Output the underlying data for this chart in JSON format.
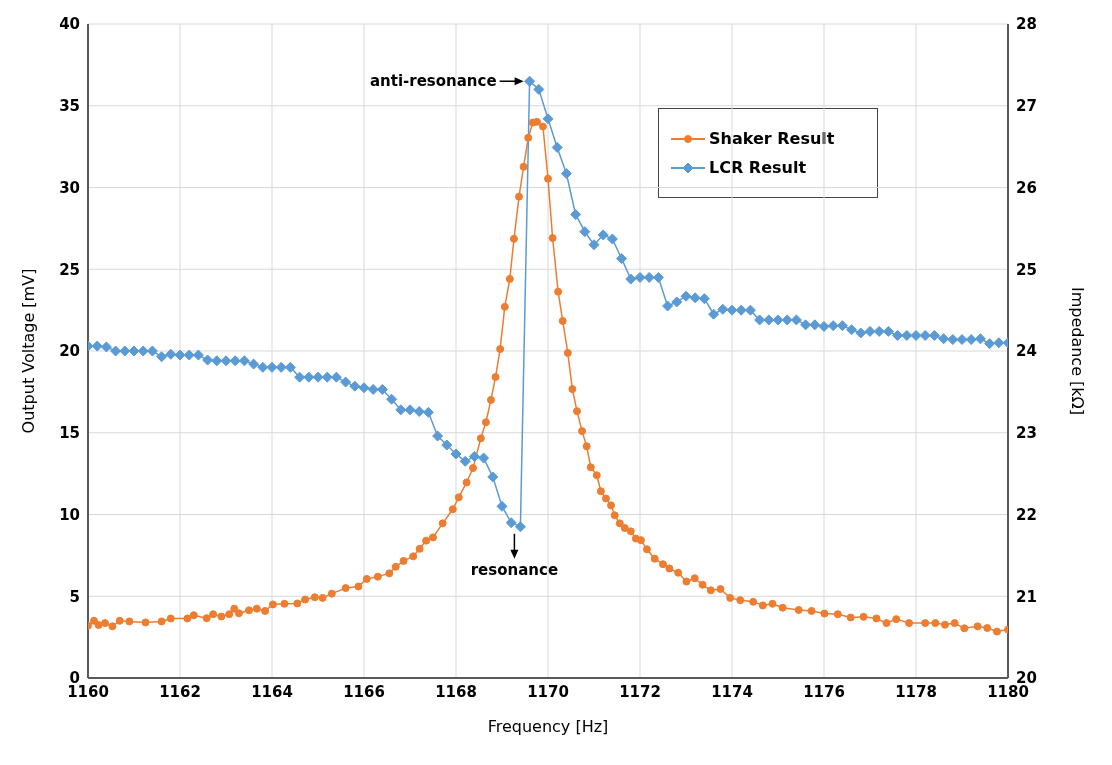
{
  "chart_data": {
    "type": "line",
    "xlabel": "Frequency [Hz]",
    "ylabel": "Output Voltage [mV]",
    "y2label": "Impedance [kΩ]",
    "xlim": [
      1160,
      1180
    ],
    "xticks": [
      1160,
      1162,
      1164,
      1166,
      1168,
      1170,
      1172,
      1174,
      1176,
      1178,
      1180
    ],
    "ylim": [
      0,
      40
    ],
    "yticks": [
      0,
      5,
      10,
      15,
      20,
      25,
      30,
      35,
      40
    ],
    "y2lim": [
      20,
      28
    ],
    "y2ticks": [
      20,
      21,
      22,
      23,
      24,
      25,
      26,
      27,
      28
    ],
    "grid": true,
    "legend": "top right",
    "annotations": [
      {
        "text": "anti-resonance",
        "x": 1169.6,
        "y": 36.5
      },
      {
        "text": "resonance",
        "x": 1169.4,
        "y": 9.25
      }
    ],
    "series": [
      {
        "name": "Shaker Result",
        "color": "#ed7d31",
        "marker": "circle",
        "x": [
          1160.0,
          1160.13,
          1160.23,
          1160.37,
          1160.53,
          1160.69,
          1160.9,
          1161.25,
          1161.6,
          1161.8,
          1162.16,
          1162.3,
          1162.58,
          1162.72,
          1162.9,
          1163.07,
          1163.18,
          1163.28,
          1163.5,
          1163.67,
          1163.85,
          1164.02,
          1164.27,
          1164.55,
          1164.72,
          1164.93,
          1165.1,
          1165.3,
          1165.6,
          1165.88,
          1166.06,
          1166.3,
          1166.55,
          1166.69,
          1166.86,
          1167.07,
          1167.21,
          1167.35,
          1167.5,
          1167.71,
          1167.93,
          1168.06,
          1168.23,
          1168.37,
          1168.54,
          1168.65,
          1168.76,
          1168.86,
          1168.96,
          1169.06,
          1169.17,
          1169.26,
          1169.37,
          1169.47,
          1169.57,
          1169.67,
          1169.76,
          1169.89,
          1170.0,
          1170.1,
          1170.22,
          1170.32,
          1170.43,
          1170.53,
          1170.63,
          1170.74,
          1170.84,
          1170.93,
          1171.06,
          1171.15,
          1171.26,
          1171.37,
          1171.45,
          1171.56,
          1171.67,
          1171.8,
          1171.91,
          1172.02,
          1172.15,
          1172.32,
          1172.5,
          1172.64,
          1172.83,
          1173.01,
          1173.19,
          1173.36,
          1173.54,
          1173.75,
          1173.96,
          1174.18,
          1174.46,
          1174.67,
          1174.88,
          1175.1,
          1175.45,
          1175.73,
          1176.01,
          1176.3,
          1176.58,
          1176.86,
          1177.14,
          1177.36,
          1177.57,
          1177.85,
          1178.2,
          1178.42,
          1178.63,
          1178.84,
          1179.05,
          1179.34,
          1179.55,
          1179.76,
          1180.0
        ],
        "values": [
          3.2,
          3.5,
          3.24,
          3.36,
          3.16,
          3.5,
          3.46,
          3.4,
          3.46,
          3.64,
          3.64,
          3.84,
          3.66,
          3.9,
          3.76,
          3.9,
          4.24,
          3.96,
          4.14,
          4.24,
          4.1,
          4.5,
          4.54,
          4.56,
          4.8,
          4.94,
          4.9,
          5.16,
          5.5,
          5.6,
          6.06,
          6.2,
          6.4,
          6.8,
          7.16,
          7.44,
          7.9,
          8.4,
          8.6,
          9.46,
          10.32,
          11.05,
          11.96,
          12.84,
          14.66,
          15.64,
          17.01,
          18.41,
          20.12,
          22.7,
          24.41,
          26.86,
          29.44,
          31.27,
          33.04,
          33.97,
          34.02,
          33.73,
          30.54,
          26.91,
          23.63,
          21.84,
          19.88,
          17.67,
          16.32,
          15.1,
          14.17,
          12.89,
          12.4,
          11.42,
          10.98,
          10.56,
          9.95,
          9.46,
          9.17,
          8.97,
          8.53,
          8.43,
          7.87,
          7.3,
          6.96,
          6.7,
          6.44,
          5.9,
          6.1,
          5.7,
          5.36,
          5.44,
          4.9,
          4.76,
          4.66,
          4.44,
          4.54,
          4.3,
          4.16,
          4.1,
          3.94,
          3.9,
          3.7,
          3.74,
          3.64,
          3.36,
          3.6,
          3.36,
          3.36,
          3.36,
          3.26,
          3.36,
          3.04,
          3.16,
          3.06,
          2.84,
          2.96
        ]
      },
      {
        "name": "LCR Result",
        "color": "#5b9bd5",
        "marker": "diamond",
        "axis": "y2",
        "x": [
          1160.0,
          1160.2,
          1160.4,
          1160.6,
          1160.8,
          1161.0,
          1161.2,
          1161.4,
          1161.6,
          1161.8,
          1162.0,
          1162.2,
          1162.4,
          1162.6,
          1162.8,
          1163.0,
          1163.2,
          1163.4,
          1163.6,
          1163.8,
          1164.0,
          1164.2,
          1164.4,
          1164.6,
          1164.8,
          1165.0,
          1165.2,
          1165.4,
          1165.6,
          1165.8,
          1166.0,
          1166.2,
          1166.4,
          1166.6,
          1166.8,
          1167.0,
          1167.2,
          1167.4,
          1167.6,
          1167.8,
          1168.0,
          1168.2,
          1168.4,
          1168.6,
          1168.8,
          1169.0,
          1169.2,
          1169.4,
          1169.6,
          1169.8,
          1170.0,
          1170.2,
          1170.4,
          1170.6,
          1170.8,
          1171.0,
          1171.2,
          1171.4,
          1171.6,
          1171.8,
          1172.0,
          1172.2,
          1172.4,
          1172.6,
          1172.8,
          1173.0,
          1173.2,
          1173.4,
          1173.6,
          1173.8,
          1174.0,
          1174.2,
          1174.4,
          1174.6,
          1174.8,
          1175.0,
          1175.2,
          1175.4,
          1175.6,
          1175.8,
          1176.0,
          1176.2,
          1176.4,
          1176.6,
          1176.8,
          1177.0,
          1177.2,
          1177.4,
          1177.6,
          1177.8,
          1178.0,
          1178.2,
          1178.4,
          1178.6,
          1178.8,
          1179.0,
          1179.2,
          1179.4,
          1179.6,
          1179.8,
          1180.0
        ],
        "values": [
          24.06,
          24.06,
          24.05,
          24.0,
          24.0,
          24.0,
          24.0,
          24.0,
          23.93,
          23.96,
          23.95,
          23.95,
          23.95,
          23.89,
          23.88,
          23.88,
          23.88,
          23.88,
          23.84,
          23.8,
          23.8,
          23.8,
          23.8,
          23.68,
          23.68,
          23.68,
          23.68,
          23.68,
          23.62,
          23.57,
          23.55,
          23.53,
          23.53,
          23.41,
          23.28,
          23.28,
          23.26,
          23.25,
          22.96,
          22.85,
          22.74,
          22.65,
          22.71,
          22.69,
          22.46,
          22.1,
          21.9,
          21.85,
          27.3,
          27.2,
          26.84,
          26.49,
          26.17,
          25.67,
          25.46,
          25.3,
          25.42,
          25.37,
          25.13,
          24.88,
          24.9,
          24.9,
          24.9,
          24.55,
          24.6,
          24.67,
          24.65,
          24.64,
          24.45,
          24.51,
          24.5,
          24.5,
          24.5,
          24.38,
          24.38,
          24.38,
          24.38,
          24.38,
          24.32,
          24.32,
          24.3,
          24.31,
          24.31,
          24.26,
          24.22,
          24.24,
          24.24,
          24.24,
          24.19,
          24.19,
          24.19,
          24.19,
          24.19,
          24.15,
          24.14,
          24.14,
          24.14,
          24.15,
          24.09,
          24.1,
          24.1
        ]
      }
    ]
  }
}
